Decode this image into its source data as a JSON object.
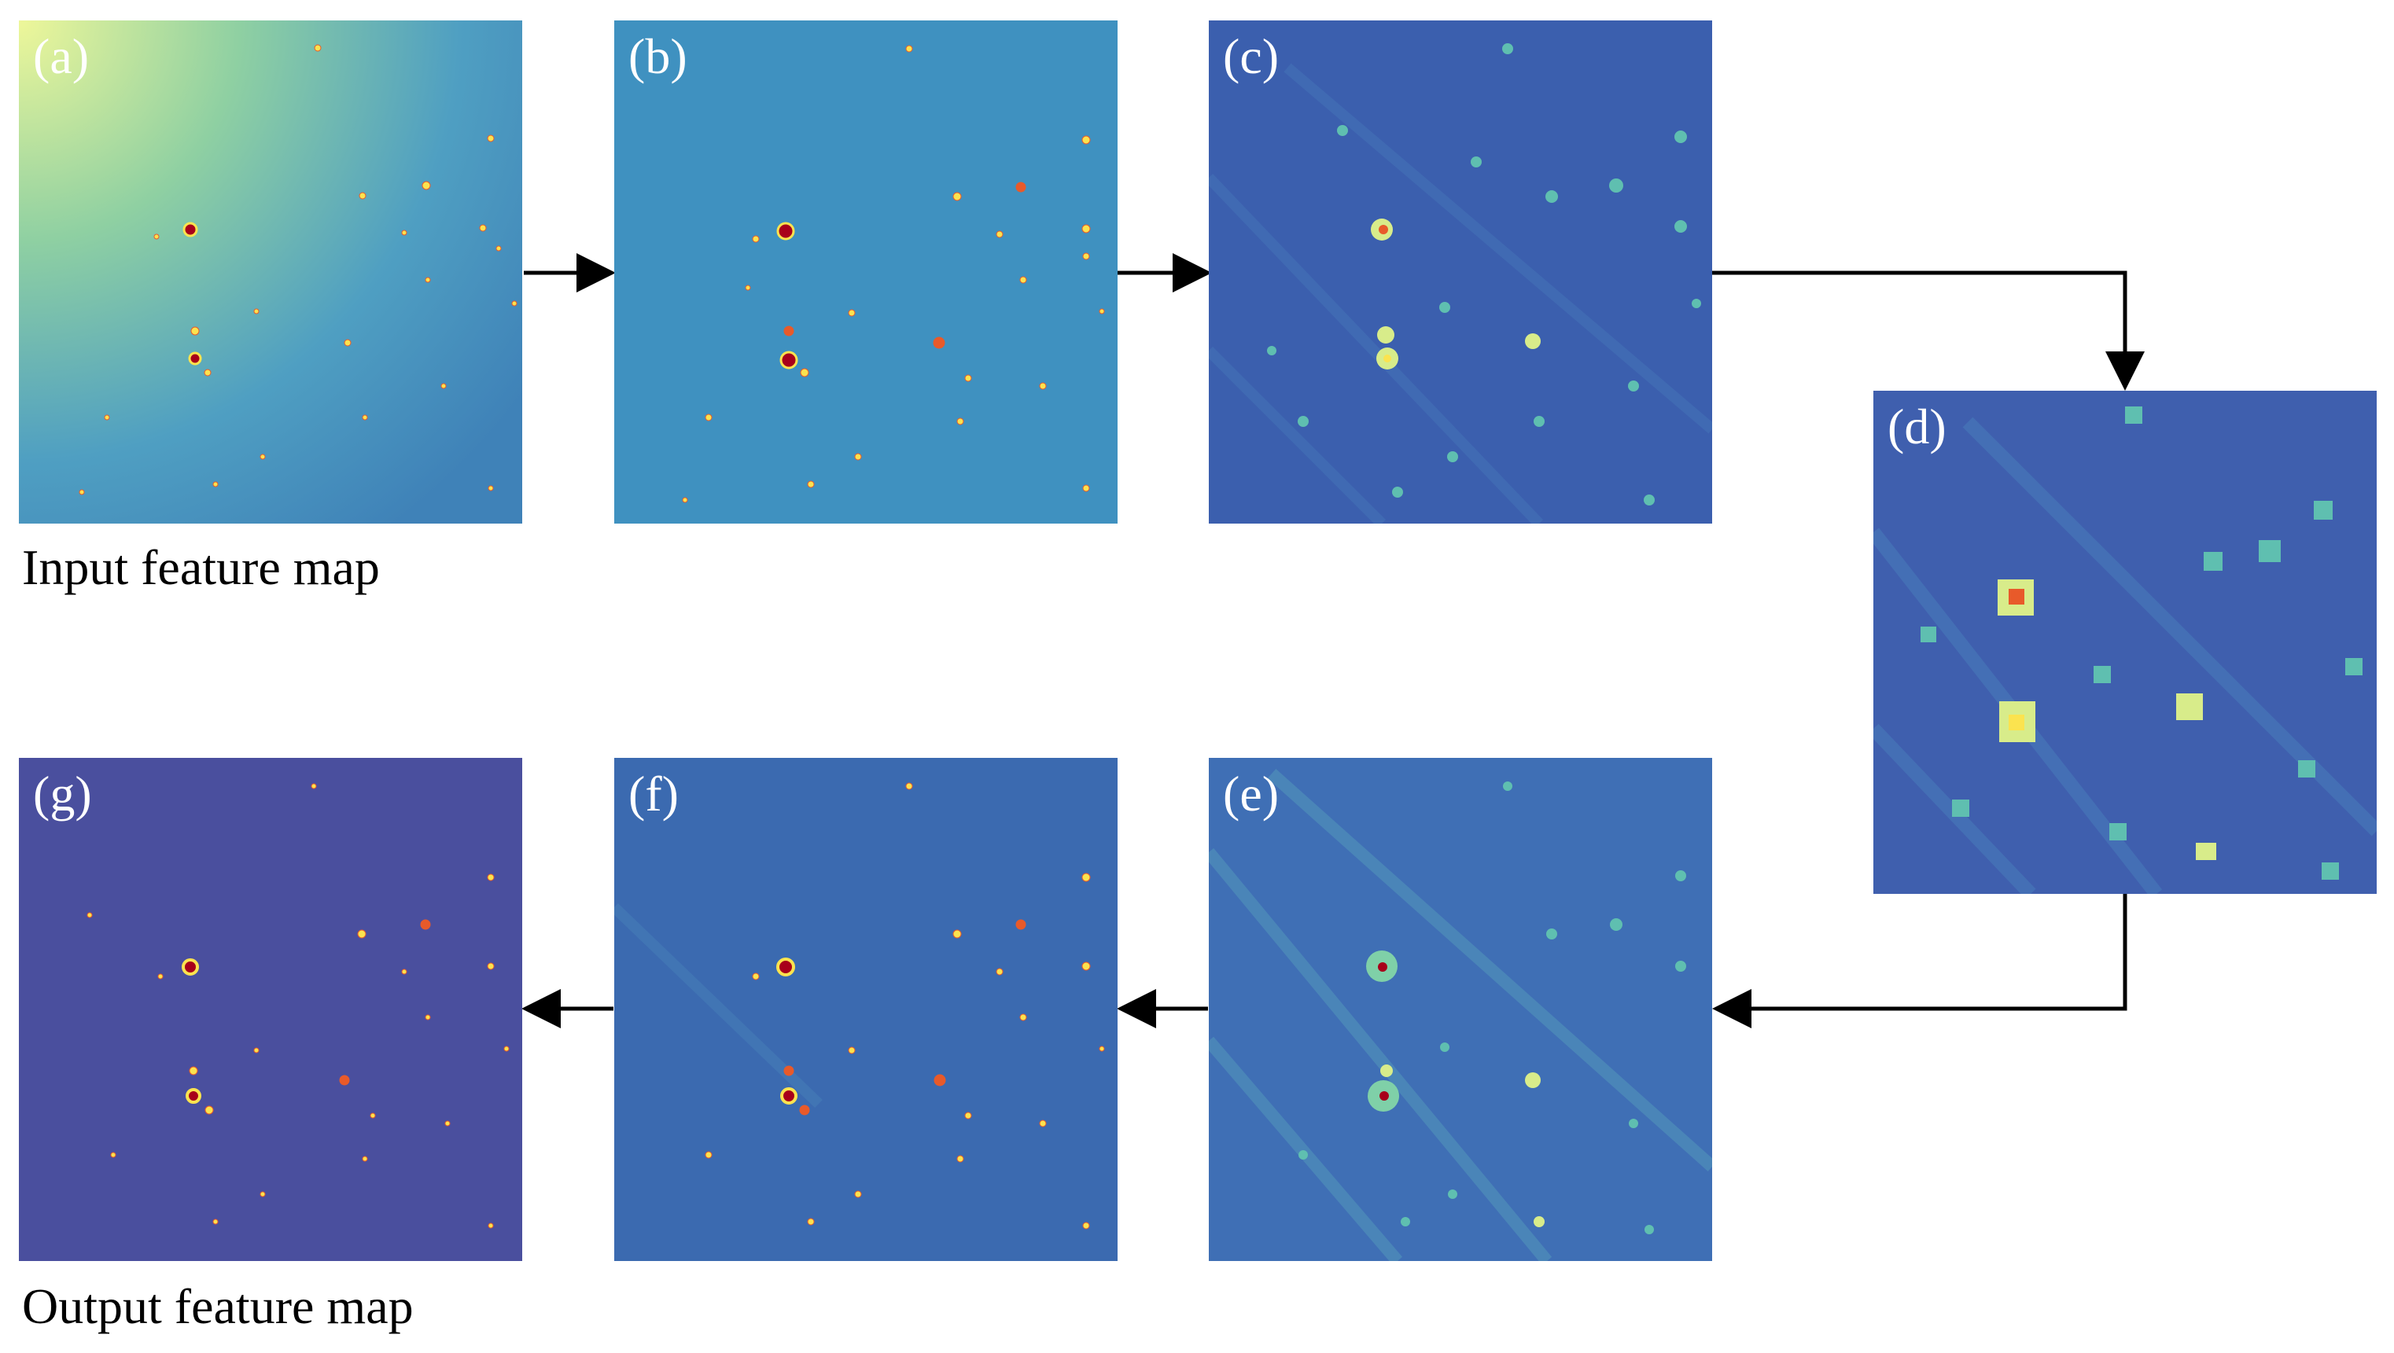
{
  "panels": [
    {
      "id": "a",
      "label": "(a)"
    },
    {
      "id": "b",
      "label": "(b)"
    },
    {
      "id": "c",
      "label": "(c)"
    },
    {
      "id": "d",
      "label": "(d)"
    },
    {
      "id": "e",
      "label": "(e)"
    },
    {
      "id": "f",
      "label": "(f)"
    },
    {
      "id": "g",
      "label": "(g)"
    }
  ],
  "captions": {
    "input": "Input feature map",
    "output": "Output feature map"
  },
  "flow": [
    "a",
    "b",
    "c",
    "d",
    "e",
    "f",
    "g"
  ],
  "colors": {
    "arrow": "#000000",
    "label": "#ffffff",
    "caption": "#000000",
    "colormap": [
      "#3f2f8f",
      "#3b5fae",
      "#3f8fc0",
      "#5fbfb0",
      "#d8ec8a",
      "#fbe34f",
      "#e85a2a",
      "#a8001a"
    ]
  }
}
